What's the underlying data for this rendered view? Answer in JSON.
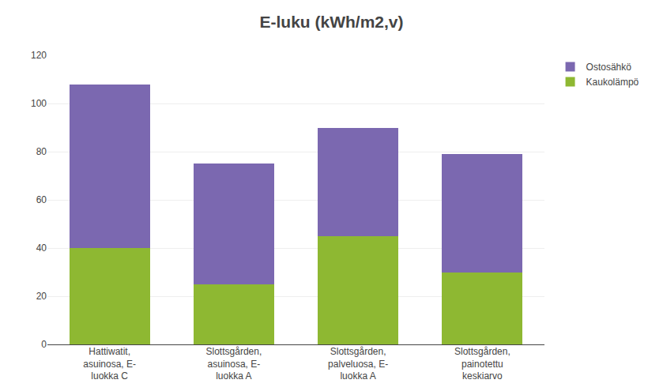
{
  "chart_data": {
    "type": "bar",
    "stacked": true,
    "title": "E-luku (kWh/m2,v)",
    "categories": [
      "Hattiwatit,\nasuinosa, E-\nluokka C",
      "Slottsgården,\nasuinosa, E-\nluokka A",
      "Slottsgården,\npalveluosa, E-\nluokka A",
      "Slottsgården,\npainotettu\nkeskiarvo"
    ],
    "series": [
      {
        "name": "Kaukolämpö",
        "color": "#8EB832",
        "values": [
          40,
          25,
          45,
          30
        ]
      },
      {
        "name": "Ostosähkö",
        "color": "#7B68B0",
        "values": [
          68,
          50,
          45,
          49
        ]
      }
    ],
    "ylim": [
      0,
      120
    ],
    "yticks": [
      0,
      20,
      40,
      60,
      80,
      100,
      120
    ],
    "grid": true,
    "legend": "upper right"
  }
}
